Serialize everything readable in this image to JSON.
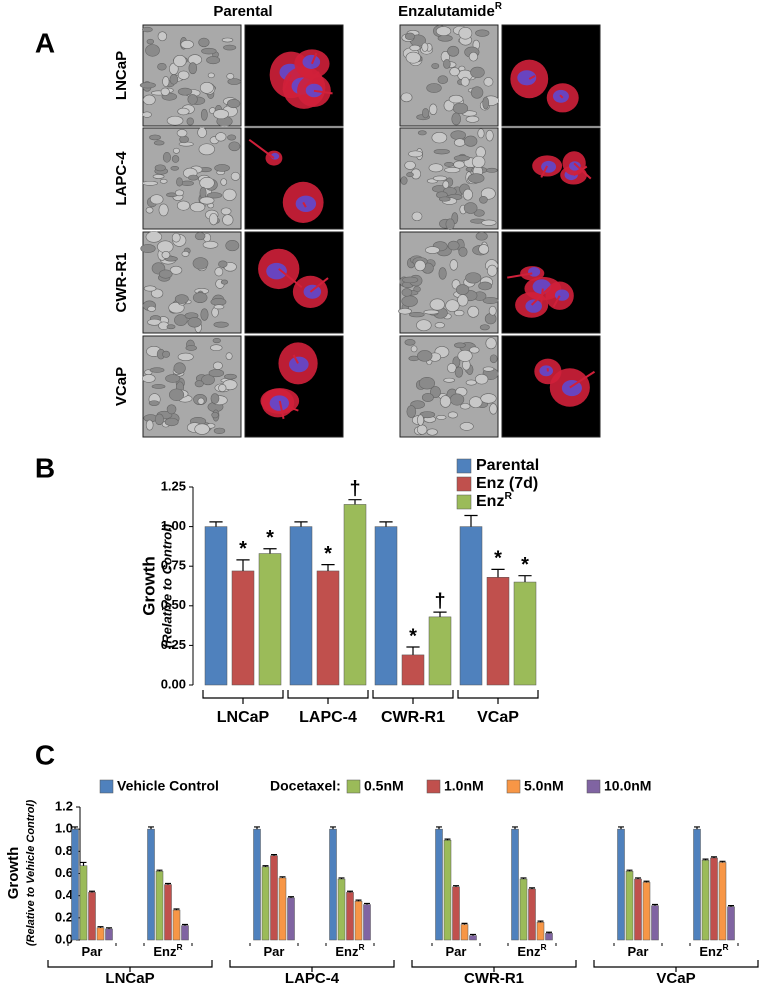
{
  "panel_labels": [
    "A",
    "B",
    "C"
  ],
  "panel_a": {
    "column_headers": [
      {
        "text": "Parental"
      },
      {
        "text": "Enzalutamide",
        "sup": "R"
      }
    ],
    "row_labels": [
      "LNCaP",
      "LAPC-4",
      "CWR-R1",
      "VCaP"
    ]
  },
  "chart_data": [
    {
      "type": "bar",
      "ylabel": "Growth",
      "ylabel_sub": "(Relative to Control)",
      "categories": [
        "LNCaP",
        "LAPC-4",
        "CWR-R1",
        "VCaP"
      ],
      "ylim": [
        0,
        1.25
      ],
      "yticks": [
        {
          "value": 0,
          "label": "0.00"
        },
        {
          "value": 0.25,
          "label": "0.25"
        },
        {
          "value": 0.5,
          "label": "0.50"
        },
        {
          "value": 0.75,
          "label": "0.75"
        },
        {
          "value": 1,
          "label": "1.00"
        },
        {
          "value": 1.25,
          "label": "1.25"
        }
      ],
      "series": [
        {
          "name": "Parental",
          "color": "#4f81bd",
          "values": [
            1.0,
            1.0,
            1.0,
            1.0
          ],
          "errors": [
            0.03,
            0.03,
            0.03,
            0.07
          ]
        },
        {
          "name": "Enz (7d)",
          "color": "#c0504d",
          "values": [
            0.72,
            0.72,
            0.19,
            0.68
          ],
          "errors": [
            0.07,
            0.04,
            0.05,
            0.05
          ],
          "markers": [
            "*",
            "*",
            "*",
            "*"
          ]
        },
        {
          "name": "Enz",
          "name_sup": "R",
          "color": "#9bbb59",
          "values": [
            0.83,
            1.14,
            0.43,
            0.65
          ],
          "errors": [
            0.03,
            0.03,
            0.03,
            0.04
          ],
          "markers": [
            "*",
            "†",
            "†",
            "*"
          ]
        }
      ]
    },
    {
      "type": "bar",
      "ylabel": "Growth",
      "ylabel_sub": "(Relative to  Vehicle Control)",
      "legend_title": "Docetaxel:",
      "groups": [
        "LNCaP",
        "LAPC-4",
        "CWR-R1",
        "VCaP"
      ],
      "categories": [
        {
          "label": "Par"
        },
        {
          "label": "Enz",
          "sup": "R"
        },
        {
          "label": "Par"
        },
        {
          "label": "Enz",
          "sup": "R"
        },
        {
          "label": "Par"
        },
        {
          "label": "Enz",
          "sup": "R"
        },
        {
          "label": "Par"
        },
        {
          "label": "Enz",
          "sup": "R"
        }
      ],
      "ylim": [
        0,
        1.2
      ],
      "yticks": [
        {
          "value": 0,
          "label": "0.0"
        },
        0.2,
        0.4,
        0.6,
        0.8,
        {
          "value": 1,
          "label": "1.0"
        },
        1.2
      ],
      "series": [
        {
          "name": "Vehicle Control",
          "color": "#4f81bd",
          "values": [
            1.0,
            1.0,
            1.0,
            1.0,
            1.0,
            1.0,
            1.0,
            1.0
          ],
          "errors": [
            0.02,
            0.02,
            0.02,
            0.02,
            0.02,
            0.02,
            0.02,
            0.02
          ]
        },
        {
          "name": "0.5nM",
          "color": "#9bbb59",
          "values": [
            0.67,
            0.62,
            0.66,
            0.55,
            0.9,
            0.55,
            0.62,
            0.72
          ],
          "errors": [
            0.03,
            0.01,
            0.01,
            0.01,
            0.01,
            0.01,
            0.01,
            0.01
          ]
        },
        {
          "name": "1.0nM",
          "color": "#c0504d",
          "values": [
            0.43,
            0.5,
            0.76,
            0.43,
            0.48,
            0.46,
            0.55,
            0.74
          ],
          "errors": [
            0.01,
            0.01,
            0.01,
            0.01,
            0.01,
            0.01,
            0.01,
            0.01
          ]
        },
        {
          "name": "5.0nM",
          "color": "#f79646",
          "values": [
            0.11,
            0.27,
            0.56,
            0.35,
            0.14,
            0.16,
            0.52,
            0.7
          ],
          "errors": [
            0.01,
            0.01,
            0.01,
            0.01,
            0.01,
            0.01,
            0.01,
            0.01
          ]
        },
        {
          "name": "10.0nM",
          "color": "#8064a2",
          "values": [
            0.1,
            0.13,
            0.38,
            0.32,
            0.04,
            0.06,
            0.31,
            0.3
          ],
          "errors": [
            0.01,
            0.01,
            0.01,
            0.01,
            0.01,
            0.01,
            0.01,
            0.01
          ]
        }
      ]
    }
  ]
}
